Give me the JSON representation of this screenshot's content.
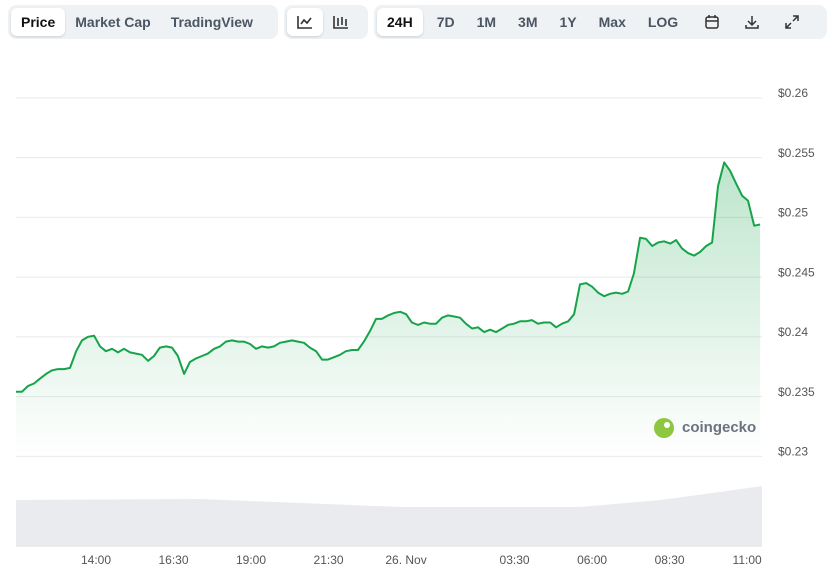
{
  "toolbar": {
    "views": [
      "Price",
      "Market Cap",
      "TradingView"
    ],
    "ranges": [
      "24H",
      "7D",
      "1M",
      "3M",
      "1Y",
      "Max",
      "LOG"
    ]
  },
  "watermark": "coingecko",
  "chart_data": {
    "type": "line",
    "color": "#16a34a",
    "x": [
      11.42,
      11.61,
      11.81,
      12.0,
      12.19,
      12.39,
      12.58,
      12.77,
      12.97,
      13.16,
      13.36,
      13.55,
      13.74,
      13.94,
      14.13,
      14.32,
      14.52,
      14.71,
      14.9,
      15.1,
      15.29,
      15.48,
      15.68,
      15.87,
      16.06,
      16.26,
      16.45,
      16.64,
      16.84,
      17.03,
      17.23,
      17.42,
      17.61,
      17.81,
      18.0,
      18.19,
      18.39,
      18.58,
      18.77,
      18.97,
      19.16,
      19.35,
      19.55,
      19.74,
      19.93,
      20.13,
      20.32,
      20.51,
      20.71,
      20.9,
      21.1,
      21.29,
      21.48,
      21.68,
      21.87,
      22.06,
      22.26,
      22.45,
      22.64,
      22.84,
      23.03,
      23.22,
      23.42,
      23.61,
      23.81,
      24.0,
      24.19,
      24.39,
      24.58,
      24.77,
      24.97,
      25.16,
      25.35,
      25.55,
      25.74,
      25.93,
      26.13,
      26.32,
      26.52,
      26.71,
      26.9,
      27.1,
      27.29,
      27.48,
      27.68,
      27.87,
      28.06,
      28.26,
      28.45,
      28.65,
      28.84,
      29.03,
      29.23,
      29.42,
      29.61,
      29.81,
      30.0,
      30.19,
      30.39,
      30.58,
      30.77,
      30.97,
      31.16,
      31.35,
      31.55,
      31.74,
      31.94,
      32.13,
      32.32,
      32.52,
      32.71,
      32.9,
      33.1,
      33.29,
      33.48,
      33.68,
      33.87,
      34.06,
      34.26,
      34.45,
      34.65,
      34.84,
      35.03,
      35.23,
      35.42
    ],
    "values": [
      0.2354,
      0.2354,
      0.2359,
      0.2361,
      0.2365,
      0.2369,
      0.2372,
      0.2373,
      0.2373,
      0.2374,
      0.2388,
      0.2397,
      0.24,
      0.2401,
      0.2392,
      0.2388,
      0.239,
      0.2387,
      0.239,
      0.2387,
      0.2386,
      0.2385,
      0.238,
      0.2384,
      0.2391,
      0.2392,
      0.2391,
      0.2384,
      0.2369,
      0.2379,
      0.2382,
      0.2384,
      0.2386,
      0.239,
      0.2392,
      0.2396,
      0.2397,
      0.2396,
      0.2396,
      0.2394,
      0.239,
      0.2392,
      0.2391,
      0.2392,
      0.2395,
      0.2396,
      0.2397,
      0.2396,
      0.2395,
      0.2391,
      0.2388,
      0.2381,
      0.2381,
      0.2383,
      0.2385,
      0.2388,
      0.2389,
      0.2389,
      0.2396,
      0.2405,
      0.2415,
      0.2415,
      0.2418,
      0.242,
      0.2421,
      0.2419,
      0.2412,
      0.241,
      0.2412,
      0.2411,
      0.2411,
      0.2416,
      0.2418,
      0.2417,
      0.2416,
      0.2411,
      0.2407,
      0.2408,
      0.2404,
      0.2406,
      0.2404,
      0.2407,
      0.241,
      0.2411,
      0.2413,
      0.2413,
      0.2414,
      0.2411,
      0.2412,
      0.2412,
      0.2408,
      0.2411,
      0.2413,
      0.2419,
      0.2444,
      0.2445,
      0.2442,
      0.2437,
      0.2434,
      0.2436,
      0.2437,
      0.2436,
      0.2438,
      0.2453,
      0.2483,
      0.2482,
      0.2476,
      0.2479,
      0.248,
      0.2478,
      0.2481,
      0.2474,
      0.247,
      0.2468,
      0.2471,
      0.2476,
      0.2479,
      0.2526,
      0.2546,
      0.2539,
      0.2528,
      0.2518,
      0.2514,
      0.2493,
      0.2494
    ],
    "xlim": [
      11.42,
      35.48
    ],
    "ylim": [
      0.2225,
      0.263
    ],
    "xticks": [
      {
        "value": 14,
        "label": "14:00"
      },
      {
        "value": 16.5,
        "label": "16:30"
      },
      {
        "value": 19,
        "label": "19:00"
      },
      {
        "value": 21.5,
        "label": "21:30"
      },
      {
        "value": 24,
        "label": "26. Nov"
      },
      {
        "value": 27.5,
        "label": "03:30"
      },
      {
        "value": 30,
        "label": "06:00"
      },
      {
        "value": 32.5,
        "label": "08:30"
      },
      {
        "value": 35,
        "label": "11:00"
      }
    ],
    "yticks": [
      {
        "value": 0.23,
        "label": "$0.23"
      },
      {
        "value": 0.235,
        "label": "$0.235"
      },
      {
        "value": 0.24,
        "label": "$0.24"
      },
      {
        "value": 0.245,
        "label": "$0.245"
      },
      {
        "value": 0.25,
        "label": "$0.25"
      },
      {
        "value": 0.255,
        "label": "$0.255"
      },
      {
        "value": 0.26,
        "label": "$0.26"
      }
    ],
    "grid": true
  }
}
